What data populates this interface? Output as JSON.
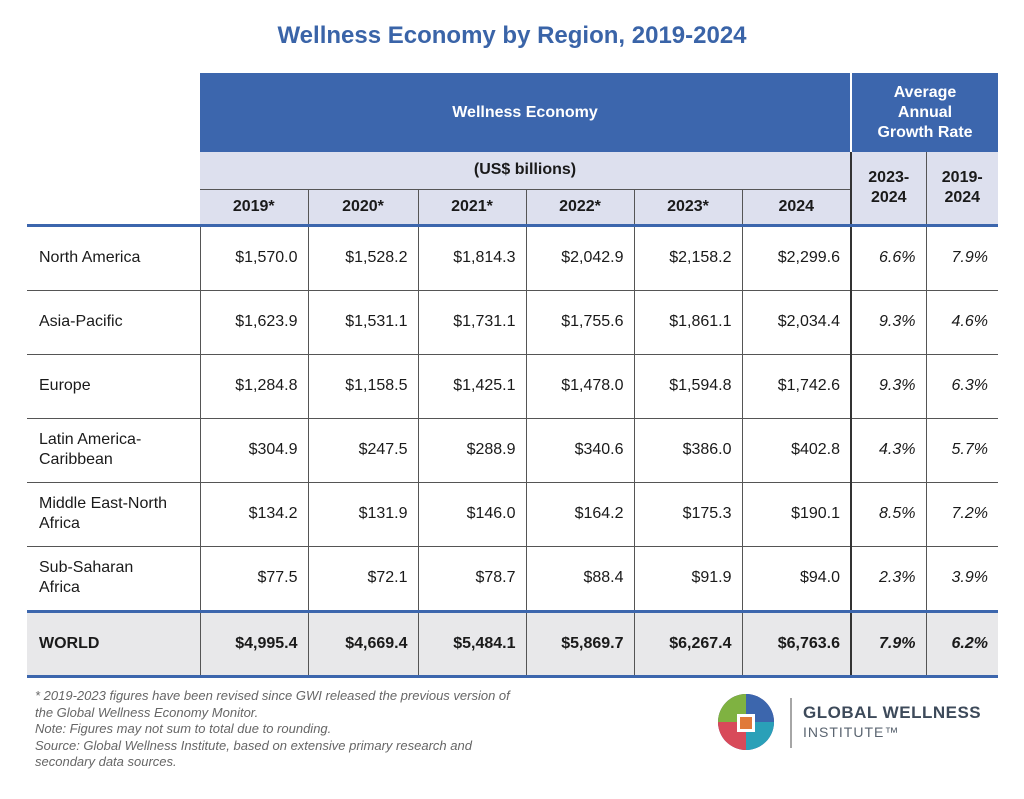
{
  "title": "Wellness Economy by Region, 2019-2024",
  "table": {
    "group_header": "Wellness Economy",
    "units": "(US$ billions)",
    "growth_header": [
      "Average",
      "Annual",
      "Growth Rate"
    ],
    "years": [
      "2019*",
      "2020*",
      "2021*",
      "2022*",
      "2023*",
      "2024"
    ],
    "growth_periods": [
      [
        "2023-",
        "2024"
      ],
      [
        "2019-",
        "2024"
      ]
    ],
    "rows": [
      {
        "label": [
          "North America"
        ],
        "values": [
          "$1,570.0",
          "$1,528.2",
          "$1,814.3",
          "$2,042.9",
          "$2,158.2",
          "$2,299.6"
        ],
        "growth": [
          "6.6%",
          "7.9%"
        ]
      },
      {
        "label": [
          "Asia-Pacific"
        ],
        "values": [
          "$1,623.9",
          "$1,531.1",
          "$1,731.1",
          "$1,755.6",
          "$1,861.1",
          "$2,034.4"
        ],
        "growth": [
          "9.3%",
          "4.6%"
        ]
      },
      {
        "label": [
          "Europe"
        ],
        "values": [
          "$1,284.8",
          "$1,158.5",
          "$1,425.1",
          "$1,478.0",
          "$1,594.8",
          "$1,742.6"
        ],
        "growth": [
          "9.3%",
          "6.3%"
        ]
      },
      {
        "label": [
          "Latin America-",
          "Caribbean"
        ],
        "values": [
          "$304.9",
          "$247.5",
          "$288.9",
          "$340.6",
          "$386.0",
          "$402.8"
        ],
        "growth": [
          "4.3%",
          "5.7%"
        ]
      },
      {
        "label": [
          "Middle East-North",
          "Africa"
        ],
        "values": [
          "$134.2",
          "$131.9",
          "$146.0",
          "$164.2",
          "$175.3",
          "$190.1"
        ],
        "growth": [
          "8.5%",
          "7.2%"
        ]
      },
      {
        "label": [
          "Sub-Saharan",
          "Africa"
        ],
        "values": [
          "$77.5",
          "$72.1",
          "$78.7",
          "$88.4",
          "$91.9",
          "$94.0"
        ],
        "growth": [
          "2.3%",
          "3.9%"
        ]
      }
    ],
    "total": {
      "label": [
        "WORLD"
      ],
      "values": [
        "$4,995.4",
        "$4,669.4",
        "$5,484.1",
        "$5,869.7",
        "$6,267.4",
        "$6,763.6"
      ],
      "growth": [
        "7.9%",
        "6.2%"
      ]
    }
  },
  "notes": [
    "* 2019-2023 figures have been revised since GWI released the previous version of",
    "the Global Wellness Economy Monitor.",
    "Note: Figures may not sum to total due to rounding.",
    "Source: Global Wellness Institute, based on extensive primary research and",
    "secondary data sources."
  ],
  "logo": {
    "name": "GLOBAL WELLNESS",
    "sub": "INSTITUTE™"
  }
}
